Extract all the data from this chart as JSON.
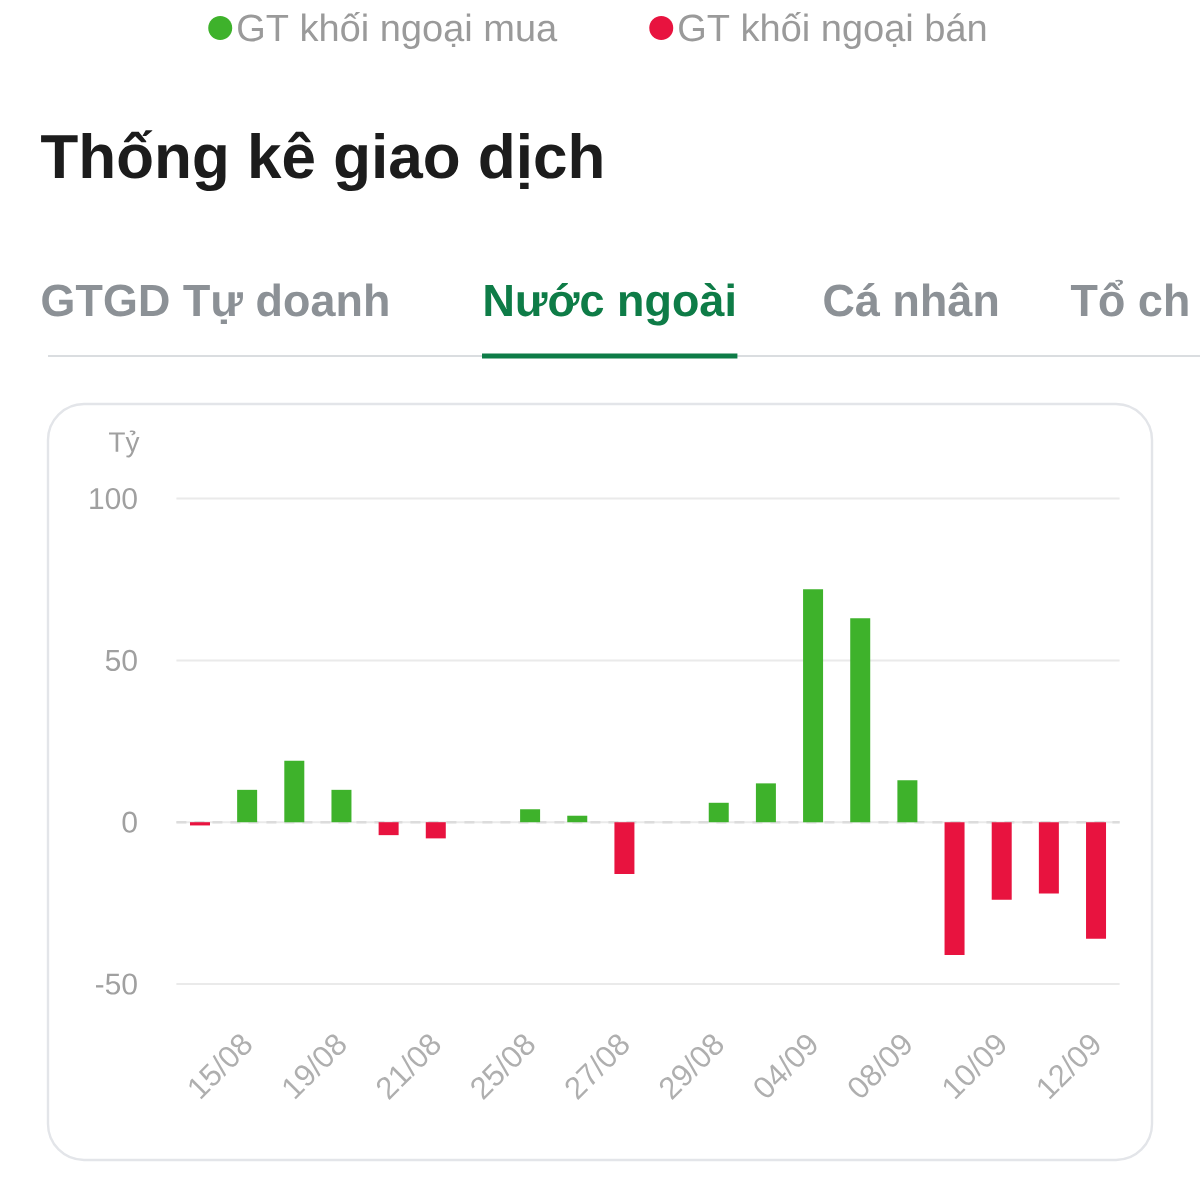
{
  "chart_data": {
    "type": "bar",
    "title": "Thống kê giao dịch",
    "subtitle": "Nước ngoài",
    "annotations": [
      "GTGD Tự doanh",
      "Cá nhân",
      "Tổ ch"
    ],
    "ylabel": "Tỷ",
    "categories": [
      null,
      "15/08",
      null,
      "19/08",
      null,
      "21/08",
      null,
      "25/08",
      null,
      "27/08",
      null,
      "29/08",
      null,
      "04/09",
      null,
      "08/09",
      null,
      "10/09",
      null,
      "12/09"
    ],
    "series": [
      {
        "name": "GT khối ngoại mua",
        "color": "#3EB22B",
        "values": [
          null,
          10,
          19,
          10,
          null,
          null,
          null,
          4,
          2,
          null,
          null,
          6,
          12,
          72,
          63,
          13,
          null,
          null,
          null,
          null
        ]
      },
      {
        "name": "GT khối ngoại bán",
        "color": "#E8133F",
        "values": [
          -1,
          null,
          null,
          null,
          -4,
          -5,
          null,
          null,
          null,
          -16,
          null,
          null,
          null,
          null,
          null,
          null,
          -41,
          -24,
          -22,
          -36
        ]
      }
    ],
    "ylim": [
      -50,
      100
    ],
    "yticks": [
      -50,
      0,
      50,
      100
    ],
    "grid": "y",
    "legend": "top",
    "ref_lines": [
      {
        "axis": "y",
        "value": 0,
        "color": "#DCDCDC",
        "line_style": "dashed"
      }
    ]
  }
}
